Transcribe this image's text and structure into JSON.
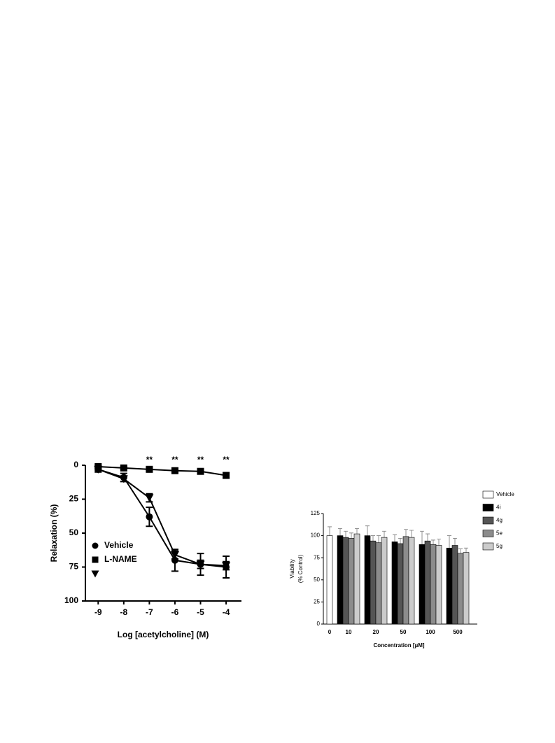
{
  "chart_data": [
    {
      "type": "line",
      "y_label": "Relaxation (%)",
      "x_label": "Log [acetylcholine] (M)",
      "x": [
        -9,
        -8,
        -7,
        -6,
        -5,
        -4
      ],
      "xlim": [
        -9.5,
        -3.4
      ],
      "xticks": [
        -9,
        -8,
        -7,
        -6,
        -5,
        -4
      ],
      "ylim": [
        0,
        100
      ],
      "yticks": [
        0,
        25,
        50,
        75,
        100
      ],
      "y_inverted": true,
      "series": [
        {
          "name": "Vehicle",
          "marker": "circle",
          "color": "#000000",
          "values": [
            3,
            9,
            38,
            70,
            73,
            75
          ],
          "errors": [
            2,
            3,
            7,
            8,
            8,
            8
          ]
        },
        {
          "name": "L-NAME",
          "marker": "square",
          "color": "#000000",
          "values": [
            1,
            2,
            3,
            4,
            4.5,
            7.5
          ],
          "errors": [
            1,
            1,
            1,
            1,
            1,
            2
          ]
        },
        {
          "marker": "triangle",
          "color": "#000000",
          "values": [
            3,
            10,
            24,
            66,
            73,
            74
          ],
          "errors": [
            1,
            2,
            3,
            3,
            3,
            3
          ]
        }
      ],
      "annotations": [
        {
          "x": -7,
          "text": "**"
        },
        {
          "x": -6,
          "text": "**"
        },
        {
          "x": -5,
          "text": "**"
        },
        {
          "x": -4,
          "text": "**"
        }
      ]
    },
    {
      "type": "bar",
      "y_label": [
        "Viability",
        "(% Control)"
      ],
      "x_label": "Concentration [µM]",
      "categories": [
        "0",
        "10",
        "20",
        "50",
        "100",
        "500"
      ],
      "ylim": [
        0,
        125
      ],
      "yticks": [
        0,
        25,
        50,
        75,
        100,
        125
      ],
      "series": [
        {
          "name": "Vehicle",
          "color": "#ffffff",
          "values": [
            100,
            null,
            null,
            null,
            null,
            null
          ],
          "errors": [
            10,
            null,
            null,
            null,
            null,
            null
          ]
        },
        {
          "name": "4i",
          "color": "#000000",
          "values": [
            null,
            100,
            100,
            93,
            90,
            86
          ],
          "errors": [
            null,
            8,
            11,
            8,
            15,
            14
          ]
        },
        {
          "name": "4g",
          "color": "#555555",
          "values": [
            null,
            98,
            94,
            91,
            94,
            89
          ],
          "errors": [
            null,
            7,
            6,
            6,
            8,
            8
          ]
        },
        {
          "name": "5e",
          "color": "#8c8c8c",
          "values": [
            null,
            97,
            92,
            99,
            90,
            80
          ],
          "errors": [
            null,
            6,
            8,
            8,
            5,
            5
          ]
        },
        {
          "name": "5g",
          "color": "#cccccc",
          "values": [
            null,
            102,
            98,
            98,
            89,
            81
          ],
          "errors": [
            null,
            6,
            7,
            8,
            7,
            5
          ]
        }
      ]
    }
  ]
}
